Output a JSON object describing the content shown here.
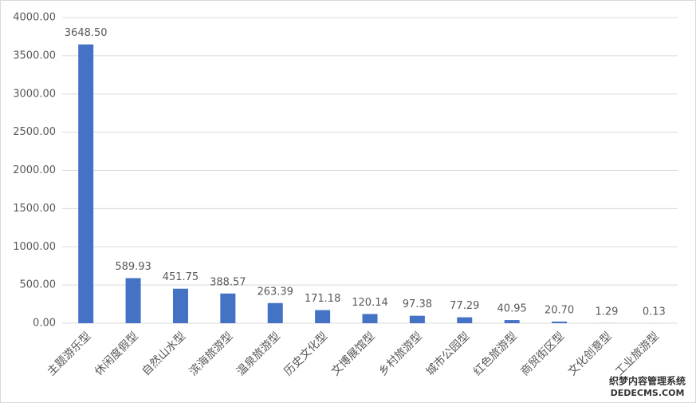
{
  "chart_data": {
    "type": "bar",
    "categories": [
      "主题游乐型",
      "休闲度假型",
      "自然山水型",
      "滨海旅游型",
      "温泉旅游型",
      "历史文化型",
      "文博展馆型",
      "乡村旅游型",
      "城市公园型",
      "红色旅游型",
      "商贸街区型",
      "文化创意型",
      "工业旅游型"
    ],
    "values": [
      3648.5,
      589.93,
      451.75,
      388.57,
      263.39,
      171.18,
      120.14,
      97.38,
      77.29,
      40.95,
      20.7,
      1.29,
      0.13
    ],
    "value_labels": [
      "3648.50",
      "589.93",
      "451.75",
      "388.57",
      "263.39",
      "171.18",
      "120.14",
      "97.38",
      "77.29",
      "40.95",
      "20.70",
      "1.29",
      "0.13"
    ],
    "color": "#4472c4",
    "ylim": [
      0,
      4000
    ],
    "yticks": [
      {
        "value": 0,
        "label": "0.00"
      },
      {
        "value": 500,
        "label": "500.00"
      },
      {
        "value": 1000,
        "label": "1000.00"
      },
      {
        "value": 1500,
        "label": "1500.00"
      },
      {
        "value": 2000,
        "label": "2000.00"
      },
      {
        "value": 2500,
        "label": "2500.00"
      },
      {
        "value": 3000,
        "label": "3000.00"
      },
      {
        "value": 3500,
        "label": "3500.00"
      },
      {
        "value": 4000,
        "label": "4000.00"
      }
    ],
    "grid": true
  },
  "watermark": [
    "织梦内容管理系统",
    "DEDECMS.COM"
  ]
}
